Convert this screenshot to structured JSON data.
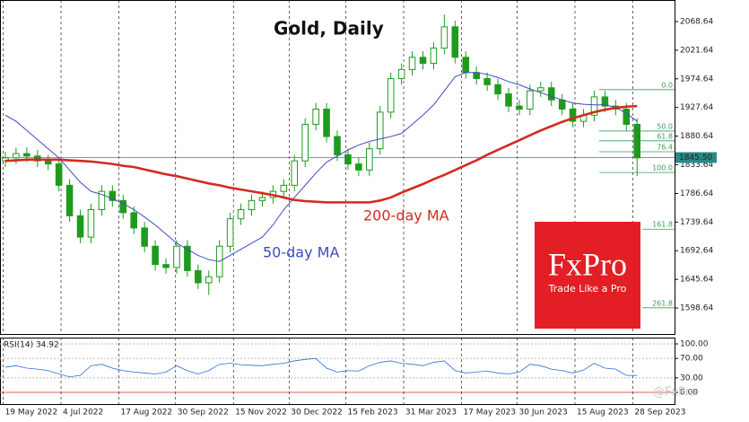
{
  "chart_data": [
    {
      "type": "candlestick",
      "title": "Gold, Daily",
      "x": [
        0,
        1,
        2,
        3,
        4,
        5,
        6,
        7,
        8,
        9,
        10,
        11,
        12,
        13,
        14,
        15,
        16,
        17,
        18,
        19,
        20,
        21,
        22,
        23,
        24,
        25,
        26,
        27,
        28,
        29,
        30,
        31,
        32,
        33,
        34,
        35,
        36,
        37,
        38,
        39,
        40,
        41,
        42,
        43,
        44,
        45,
        46,
        47,
        48,
        49,
        50,
        51,
        52,
        53,
        54,
        55,
        56,
        57,
        58,
        59
      ],
      "open": [
        1840,
        1845,
        1852,
        1848,
        1840,
        1835,
        1800,
        1750,
        1715,
        1760,
        1790,
        1775,
        1755,
        1730,
        1700,
        1670,
        1665,
        1700,
        1660,
        1640,
        1650,
        1700,
        1745,
        1760,
        1775,
        1780,
        1790,
        1800,
        1840,
        1900,
        1925,
        1880,
        1850,
        1835,
        1825,
        1860,
        1920,
        1975,
        1990,
        2010,
        2000,
        2025,
        2060,
        2010,
        1985,
        1975,
        1965,
        1950,
        1930,
        1925,
        1955,
        1960,
        1940,
        1925,
        1905,
        1915,
        1945,
        1930,
        1925,
        1900
      ],
      "high": [
        1855,
        1862,
        1862,
        1858,
        1850,
        1845,
        1810,
        1760,
        1770,
        1800,
        1800,
        1785,
        1765,
        1740,
        1710,
        1680,
        1710,
        1710,
        1670,
        1660,
        1710,
        1755,
        1770,
        1785,
        1790,
        1800,
        1810,
        1850,
        1910,
        1935,
        1935,
        1890,
        1860,
        1845,
        1870,
        1930,
        1985,
        2000,
        2020,
        2020,
        2035,
        2080,
        2070,
        2020,
        1995,
        1985,
        1975,
        1960,
        1940,
        1965,
        1970,
        1970,
        1950,
        1935,
        1925,
        1955,
        1955,
        1940,
        1935,
        1910
      ],
      "low": [
        1830,
        1835,
        1838,
        1830,
        1825,
        1790,
        1740,
        1705,
        1705,
        1750,
        1765,
        1745,
        1720,
        1690,
        1660,
        1655,
        1655,
        1650,
        1630,
        1620,
        1640,
        1690,
        1735,
        1750,
        1765,
        1770,
        1780,
        1790,
        1830,
        1890,
        1870,
        1840,
        1825,
        1815,
        1815,
        1850,
        1910,
        1965,
        1980,
        1990,
        1990,
        2015,
        2000,
        1975,
        1965,
        1955,
        1940,
        1920,
        1915,
        1915,
        1945,
        1930,
        1915,
        1895,
        1895,
        1905,
        1920,
        1915,
        1890,
        1815
      ],
      "close": [
        1845,
        1852,
        1848,
        1840,
        1835,
        1800,
        1750,
        1715,
        1760,
        1790,
        1775,
        1755,
        1730,
        1700,
        1670,
        1665,
        1700,
        1660,
        1640,
        1650,
        1700,
        1745,
        1760,
        1775,
        1780,
        1790,
        1800,
        1840,
        1900,
        1925,
        1880,
        1850,
        1835,
        1825,
        1860,
        1920,
        1975,
        1990,
        2010,
        2000,
        2025,
        2060,
        2010,
        1985,
        1975,
        1965,
        1950,
        1930,
        1925,
        1955,
        1960,
        1940,
        1925,
        1905,
        1915,
        1945,
        1930,
        1925,
        1900,
        1845
      ],
      "color": "#1f9a1f",
      "series": [
        {
          "name": "50-day MA",
          "color": "#3b4cc0",
          "values": [
            1915,
            1905,
            1890,
            1875,
            1860,
            1845,
            1825,
            1805,
            1790,
            1785,
            1778,
            1770,
            1760,
            1748,
            1735,
            1720,
            1705,
            1695,
            1685,
            1678,
            1675,
            1685,
            1695,
            1705,
            1715,
            1735,
            1760,
            1780,
            1800,
            1820,
            1838,
            1848,
            1858,
            1866,
            1872,
            1876,
            1880,
            1885,
            1900,
            1915,
            1932,
            1955,
            1978,
            1985,
            1985,
            1982,
            1977,
            1970,
            1965,
            1958,
            1952,
            1946,
            1940,
            1935,
            1933,
            1932,
            1932,
            1928,
            1918,
            1905
          ]
        },
        {
          "name": "200-day MA",
          "color": "#d42a20",
          "values": [
            1840,
            1841,
            1842,
            1842,
            1842,
            1842,
            1841,
            1840,
            1839,
            1837,
            1835,
            1832,
            1830,
            1826,
            1822,
            1818,
            1815,
            1811,
            1807,
            1803,
            1800,
            1796,
            1793,
            1790,
            1787,
            1784,
            1780,
            1776,
            1774,
            1773,
            1772,
            1772,
            1772,
            1772,
            1772,
            1775,
            1780,
            1788,
            1795,
            1802,
            1810,
            1817,
            1825,
            1833,
            1841,
            1850,
            1858,
            1866,
            1874,
            1882,
            1890,
            1897,
            1904,
            1910,
            1915,
            1920,
            1924,
            1927,
            1929,
            1930
          ]
        }
      ],
      "last": {
        "value": 1845.5,
        "label": "1845.50"
      },
      "levels": [
        {
          "value": 1957,
          "label": "0.0"
        },
        {
          "value": 1889,
          "label": "50.0"
        },
        {
          "value": 1873,
          "label": "61.8"
        },
        {
          "value": 1855,
          "label": "76.4"
        },
        {
          "value": 1821,
          "label": "100.0"
        },
        {
          "value": 1728,
          "label": "161.8"
        },
        {
          "value": 1599,
          "label": "261.8"
        }
      ],
      "xlim": [
        -0.5,
        62.5
      ],
      "ylim": [
        1556,
        2104
      ],
      "yticks": [
        2068.64,
        2021.64,
        1974.64,
        1927.64,
        1880.64,
        1833.64,
        1786.64,
        1739.64,
        1692.64,
        1645.64,
        1598.64
      ]
    },
    {
      "type": "line",
      "title": "RSI(14) 34.92",
      "color": "#2a6fd6",
      "x": [
        0,
        1,
        2,
        3,
        4,
        5,
        6,
        7,
        8,
        9,
        10,
        11,
        12,
        13,
        14,
        15,
        16,
        17,
        18,
        19,
        20,
        21,
        22,
        23,
        24,
        25,
        26,
        27,
        28,
        29,
        30,
        31,
        32,
        33,
        34,
        35,
        36,
        37,
        38,
        39,
        40,
        41,
        42,
        43,
        44,
        45,
        46,
        47,
        48,
        49,
        50,
        51,
        52,
        53,
        54,
        55,
        56,
        57,
        58,
        59
      ],
      "values": [
        52,
        55,
        50,
        48,
        45,
        38,
        32,
        35,
        55,
        58,
        50,
        45,
        42,
        40,
        38,
        42,
        55,
        45,
        38,
        45,
        58,
        60,
        57,
        56,
        55,
        58,
        60,
        65,
        68,
        70,
        50,
        42,
        45,
        44,
        55,
        62,
        65,
        60,
        58,
        55,
        62,
        65,
        45,
        40,
        42,
        44,
        40,
        38,
        42,
        58,
        55,
        48,
        45,
        40,
        46,
        60,
        50,
        48,
        35,
        34.92
      ],
      "xlim": [
        -0.5,
        62.5
      ],
      "ylim": [
        -24,
        113
      ],
      "yticks": [
        {
          "value": 100,
          "label": "100.00"
        },
        {
          "value": 70,
          "label": "70.00"
        },
        {
          "value": 30,
          "label": "30.00"
        },
        {
          "value": 0,
          "label": "0.00"
        }
      ],
      "xticks": [
        {
          "value": -0.2,
          "label": "19 May 2022"
        },
        {
          "value": 5.2,
          "label": "4 Jul 2022"
        },
        {
          "value": 10.6,
          "label": "17 Aug 2022"
        },
        {
          "value": 15.9,
          "label": "30 Sep 2022"
        },
        {
          "value": 21.3,
          "label": "15 Nov 2022"
        },
        {
          "value": 26.5,
          "label": "30 Dec 2022"
        },
        {
          "value": 31.8,
          "label": "15 Feb 2023"
        },
        {
          "value": 37.2,
          "label": "31 Mar 2023"
        },
        {
          "value": 42.6,
          "label": "17 May 2023"
        },
        {
          "value": 47.8,
          "label": "30 Jun 2023"
        },
        {
          "value": 53.2,
          "label": "15 Aug 2023"
        },
        {
          "value": 58.6,
          "label": "28 Sep 2023"
        }
      ]
    }
  ],
  "logo": {
    "name": "FxPro",
    "tagline": "Trade Like a Pro"
  },
  "watermark": "@FxPro"
}
